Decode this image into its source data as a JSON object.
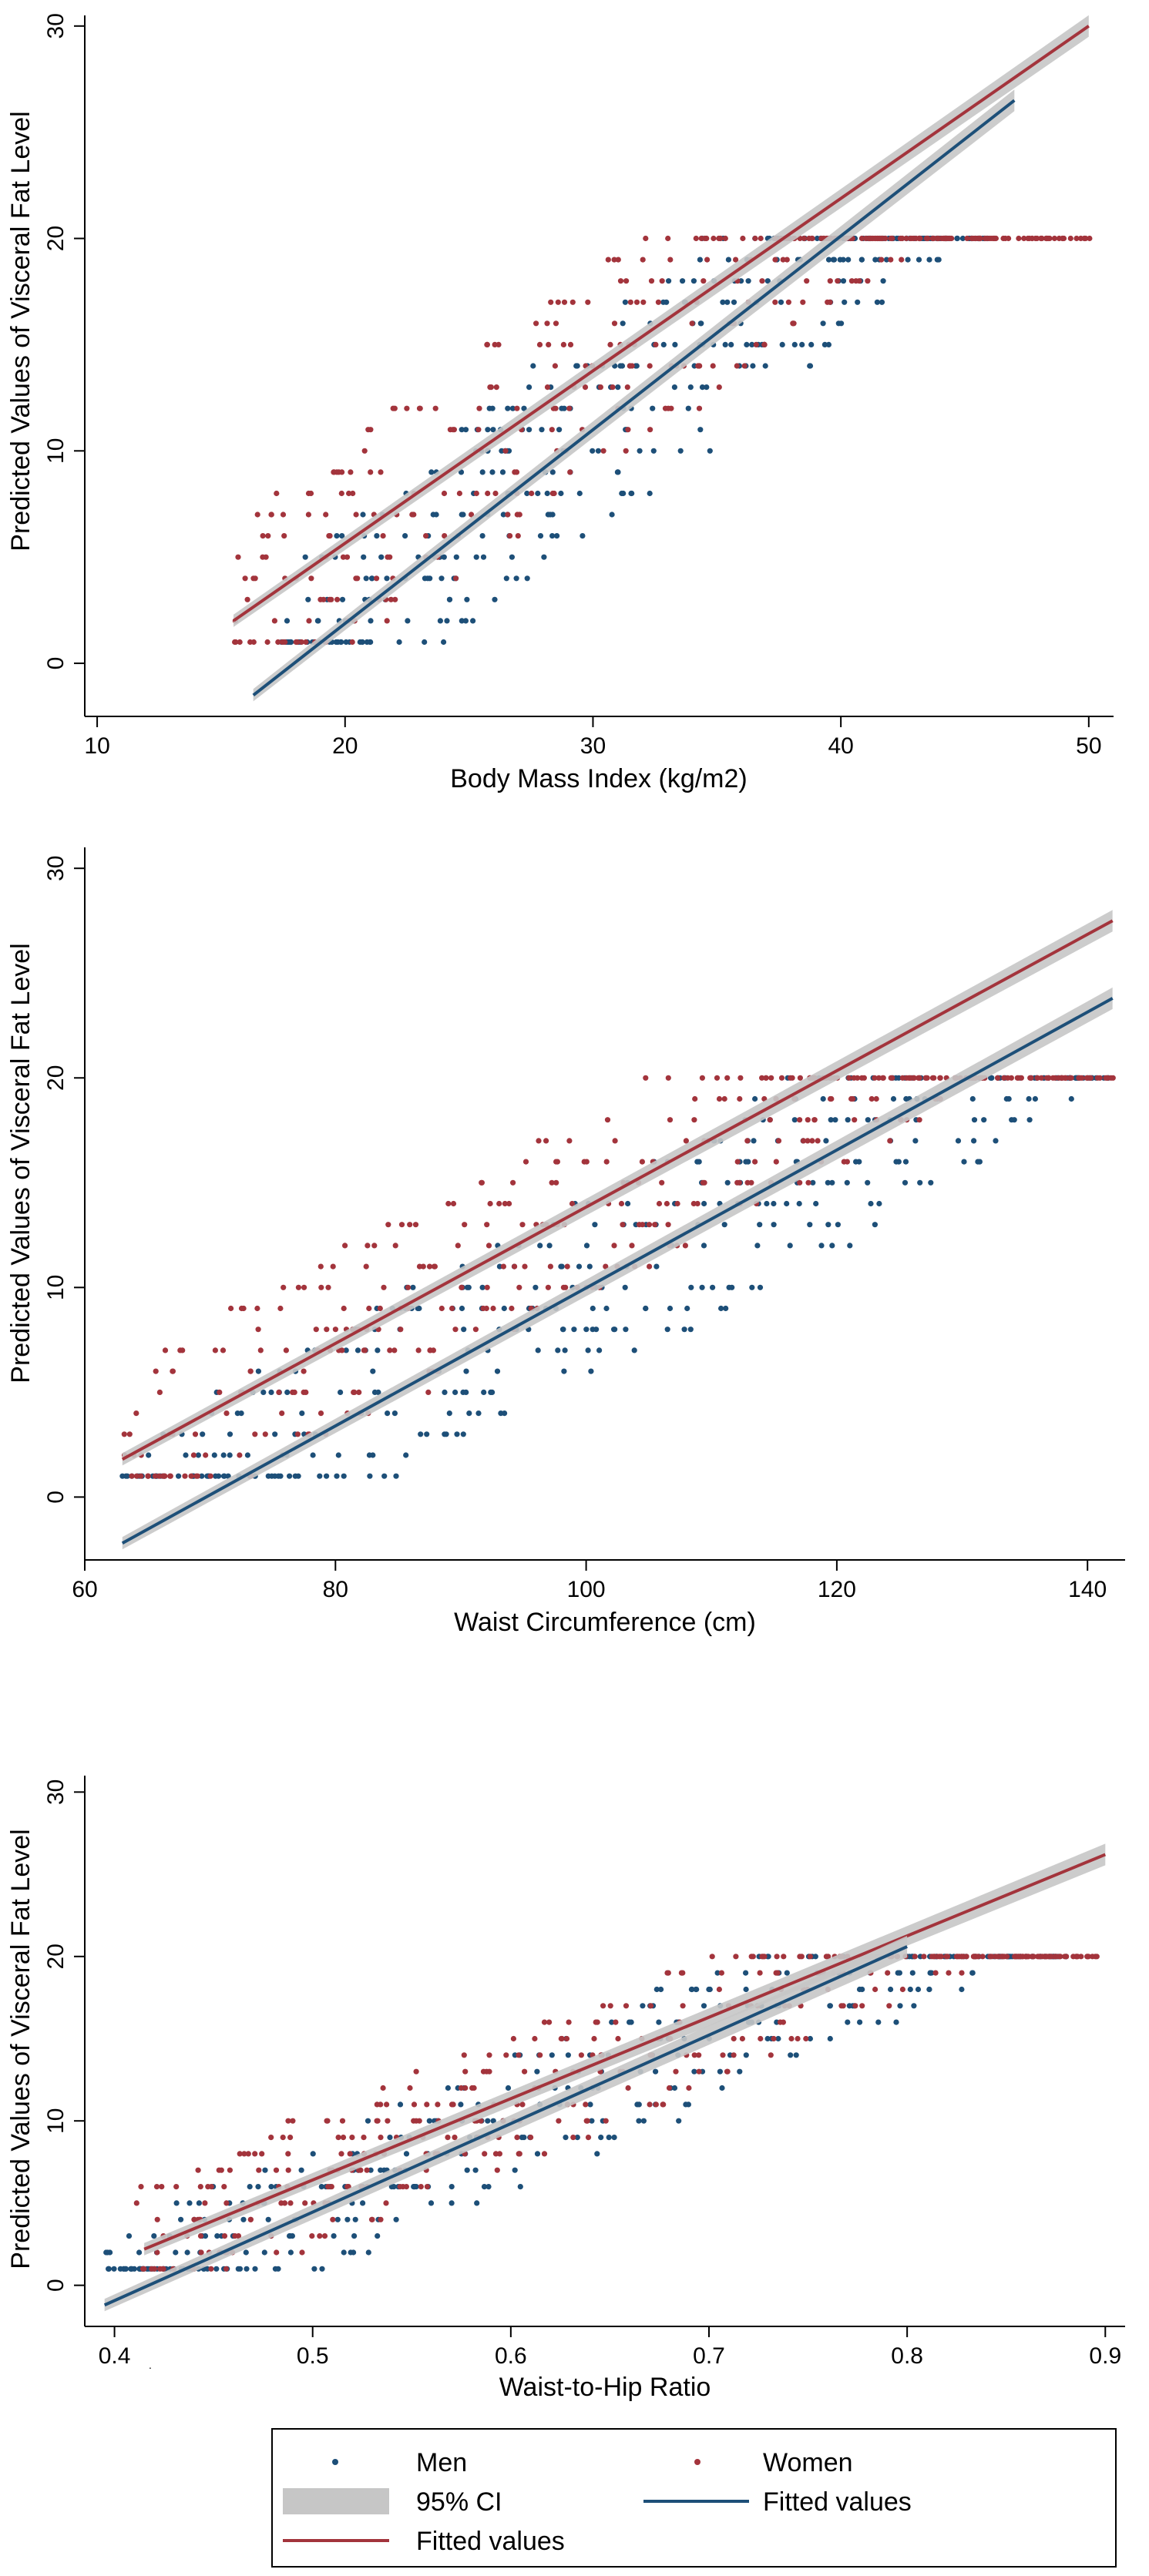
{
  "colors": {
    "men": "#1d4f78",
    "women": "#a3343c",
    "ci": "#c6c6c6",
    "axis": "#000000"
  },
  "legend": {
    "men_label": "Men",
    "women_label": "Women",
    "ci_label": "95% CI",
    "fitted_women_label": "Fitted values",
    "fitted_men_label": "Fitted values"
  },
  "chart_data": [
    {
      "type": "scatter",
      "title": "",
      "xlabel": "Body Mass Index (kg/m2)",
      "ylabel": "Predicted Values of Visceral Fat Level",
      "xlim": [
        9.5,
        51
      ],
      "ylim": [
        -2.5,
        30.5
      ],
      "xticks": [
        10,
        20,
        30,
        40,
        50
      ],
      "yticks": [
        0,
        10,
        20,
        30
      ],
      "series": [
        {
          "name": "Men",
          "kind": "points",
          "x_range": [
            17.5,
            46
          ],
          "y_range": [
            1,
            20
          ],
          "note": "approximate cloud of integer-valued points"
        },
        {
          "name": "Women",
          "kind": "points",
          "x_range": [
            15.5,
            50
          ],
          "y_range": [
            1,
            20
          ],
          "note": "approximate cloud of integer-valued points"
        },
        {
          "name": "Fitted values (Women)",
          "kind": "line",
          "x": [
            15.5,
            50
          ],
          "y": [
            2,
            30
          ]
        },
        {
          "name": "Fitted values (Men)",
          "kind": "line",
          "x": [
            16.3,
            47
          ],
          "y": [
            -1.5,
            26.5
          ]
        }
      ]
    },
    {
      "type": "scatter",
      "title": "",
      "xlabel": "Waist Circumference (cm)",
      "ylabel": "Predicted Values of Visceral Fat Level",
      "xlim": [
        60,
        143
      ],
      "ylim": [
        -3,
        31
      ],
      "xticks": [
        60,
        80,
        100,
        120,
        140
      ],
      "yticks": [
        0,
        10,
        20,
        30
      ],
      "series": [
        {
          "name": "Men",
          "kind": "points",
          "x_range": [
            63,
            142
          ],
          "y_range": [
            1,
            20
          ],
          "note": "approximate cloud of integer-valued points"
        },
        {
          "name": "Women",
          "kind": "points",
          "x_range": [
            63,
            142
          ],
          "y_range": [
            1,
            20
          ],
          "note": "approximate cloud of integer-valued points"
        },
        {
          "name": "Fitted values (Women)",
          "kind": "line",
          "x": [
            63,
            142
          ],
          "y": [
            1.8,
            27.5
          ]
        },
        {
          "name": "Fitted values (Men)",
          "kind": "line",
          "x": [
            63,
            142
          ],
          "y": [
            -2.2,
            23.8
          ]
        }
      ]
    },
    {
      "type": "scatter",
      "title": "",
      "xlabel": "Waist-to-Hip Ratio",
      "ylabel": "Predicted Values of Visceral Fat Level",
      "xlim": [
        0.385,
        0.91
      ],
      "ylim": [
        -2.5,
        31
      ],
      "xticks": [
        0.4,
        0.5,
        0.6,
        0.7,
        0.8,
        0.9
      ],
      "yticks": [
        0,
        10,
        20,
        30
      ],
      "series": [
        {
          "name": "Men",
          "kind": "points",
          "x_range": [
            0.395,
            0.88
          ],
          "y_range": [
            1,
            20
          ],
          "note": "approximate cloud of integer-valued points"
        },
        {
          "name": "Women",
          "kind": "points",
          "x_range": [
            0.41,
            0.9
          ],
          "y_range": [
            1,
            20
          ],
          "note": "approximate cloud of integer-valued points"
        },
        {
          "name": "Fitted values (Women)",
          "kind": "line",
          "x": [
            0.415,
            0.9
          ],
          "y": [
            2.2,
            26.2
          ]
        },
        {
          "name": "Fitted values (Men)",
          "kind": "line",
          "x": [
            0.395,
            0.8
          ],
          "y": [
            -1.2,
            20.6
          ]
        }
      ]
    }
  ]
}
